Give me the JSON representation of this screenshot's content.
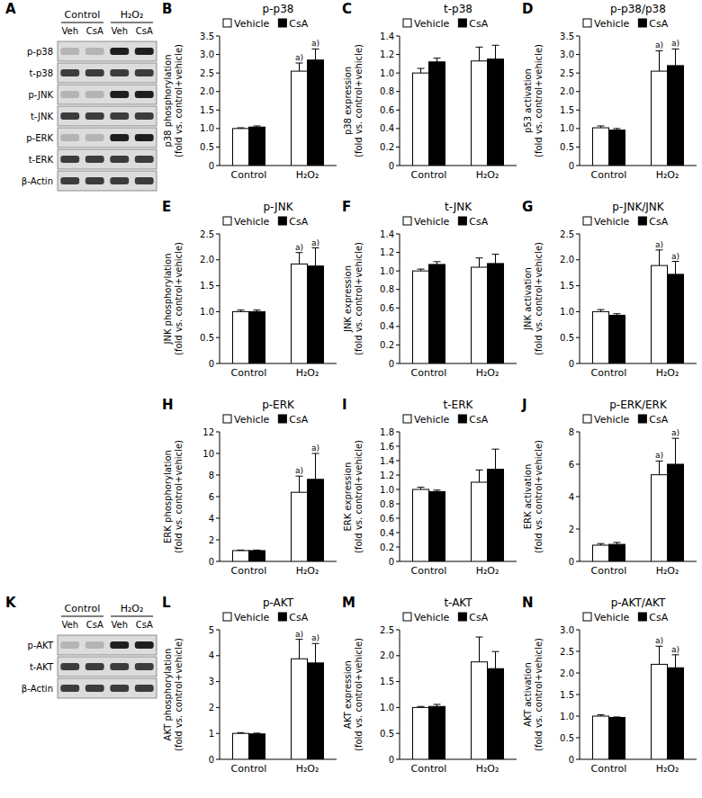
{
  "chart_data": [
    {
      "panel": "B",
      "type": "bar",
      "title": "p-p38",
      "ylabel": [
        "p38 phosphorylation",
        "(fold vs. control+vehicle)"
      ],
      "categories": [
        "Control",
        "H₂O₂"
      ],
      "legend": "upper left",
      "ylim": [
        0,
        3.5
      ],
      "yticks": [
        0,
        0.5,
        {
          "value": 1,
          "label": "1.0"
        },
        1.5,
        {
          "value": 2,
          "label": "2.0"
        },
        2.5,
        {
          "value": 3,
          "label": "3.0"
        },
        3.5
      ],
      "series": [
        {
          "name": "Vehicle",
          "color": "#ffffff",
          "values": [
            1.0,
            2.55
          ],
          "errors": [
            0.02,
            0.22
          ],
          "significance": [
            null,
            "a)"
          ]
        },
        {
          "name": "CsA",
          "color": "#000000",
          "values": [
            1.04,
            2.85
          ],
          "errors": [
            0.03,
            0.3
          ],
          "significance": [
            null,
            "a)"
          ]
        }
      ]
    },
    {
      "panel": "C",
      "type": "bar",
      "title": "t-p38",
      "ylabel": [
        "p38 expression",
        "(fold vs. control+vehicle)"
      ],
      "categories": [
        "Control",
        "H₂O₂"
      ],
      "legend": "upper left",
      "ylim": [
        0,
        1.4
      ],
      "yticks": [
        0,
        0.2,
        0.4,
        0.6,
        0.8,
        {
          "value": 1,
          "label": "1.0"
        },
        1.2,
        1.4
      ],
      "series": [
        {
          "name": "Vehicle",
          "color": "#ffffff",
          "values": [
            1.0,
            1.13
          ],
          "errors": [
            0.05,
            0.15
          ]
        },
        {
          "name": "CsA",
          "color": "#000000",
          "values": [
            1.12,
            1.15
          ],
          "errors": [
            0.04,
            0.15
          ]
        }
      ]
    },
    {
      "panel": "D",
      "type": "bar",
      "title": "p-p38/p38",
      "ylabel": [
        "p53 activation",
        "(fold vs. control+vehicle)"
      ],
      "categories": [
        "Control",
        "H₂O₂"
      ],
      "legend": "upper left",
      "ylim": [
        0,
        3.5
      ],
      "yticks": [
        0,
        0.5,
        {
          "value": 1,
          "label": "1.0"
        },
        1.5,
        {
          "value": 2,
          "label": "2.0"
        },
        2.5,
        {
          "value": 3,
          "label": "3.0"
        },
        3.5
      ],
      "series": [
        {
          "name": "Vehicle",
          "color": "#ffffff",
          "values": [
            1.02,
            2.55
          ],
          "errors": [
            0.05,
            0.55
          ],
          "significance": [
            null,
            "a)"
          ]
        },
        {
          "name": "CsA",
          "color": "#000000",
          "values": [
            0.96,
            2.7
          ],
          "errors": [
            0.04,
            0.45
          ],
          "significance": [
            null,
            "a)"
          ]
        }
      ]
    },
    {
      "panel": "E",
      "type": "bar",
      "title": "p-JNK",
      "ylabel": [
        "JNK phosphorylation",
        "(fold vs. control+vehicle)"
      ],
      "categories": [
        "Control",
        "H₂O₂"
      ],
      "legend": "upper left",
      "ylim": [
        0,
        2.5
      ],
      "yticks": [
        0,
        0.5,
        {
          "value": 1,
          "label": "1.0"
        },
        1.5,
        {
          "value": 2,
          "label": "2.0"
        },
        2.5
      ],
      "series": [
        {
          "name": "Vehicle",
          "color": "#ffffff",
          "values": [
            1.0,
            1.92
          ],
          "errors": [
            0.03,
            0.22
          ],
          "significance": [
            null,
            "a)"
          ]
        },
        {
          "name": "CsA",
          "color": "#000000",
          "values": [
            1.0,
            1.88
          ],
          "errors": [
            0.03,
            0.35
          ],
          "significance": [
            null,
            "a)"
          ]
        }
      ]
    },
    {
      "panel": "F",
      "type": "bar",
      "title": "t-JNK",
      "ylabel": [
        "JNK expression",
        "(fold vs. control+vehicle)"
      ],
      "categories": [
        "Control",
        "H₂O₂"
      ],
      "legend": "upper left",
      "ylim": [
        0,
        1.4
      ],
      "yticks": [
        0,
        0.2,
        0.4,
        0.6,
        0.8,
        {
          "value": 1,
          "label": "1.0"
        },
        1.2,
        1.4
      ],
      "series": [
        {
          "name": "Vehicle",
          "color": "#ffffff",
          "values": [
            1.0,
            1.04
          ],
          "errors": [
            0.02,
            0.1
          ]
        },
        {
          "name": "CsA",
          "color": "#000000",
          "values": [
            1.07,
            1.08
          ],
          "errors": [
            0.03,
            0.1
          ]
        }
      ]
    },
    {
      "panel": "G",
      "type": "bar",
      "title": "p-JNK/JNK",
      "ylabel": [
        "JNK activation",
        "(fold vs. control+vehicle)"
      ],
      "categories": [
        "Control",
        "H₂O₂"
      ],
      "legend": "upper left",
      "ylim": [
        0,
        2.5
      ],
      "yticks": [
        0,
        0.5,
        {
          "value": 1,
          "label": "1.0"
        },
        1.5,
        {
          "value": 2,
          "label": "2.0"
        },
        2.5
      ],
      "series": [
        {
          "name": "Vehicle",
          "color": "#ffffff",
          "values": [
            1.0,
            1.89
          ],
          "errors": [
            0.04,
            0.3
          ],
          "significance": [
            null,
            "a)"
          ]
        },
        {
          "name": "CsA",
          "color": "#000000",
          "values": [
            0.93,
            1.72
          ],
          "errors": [
            0.03,
            0.25
          ],
          "significance": [
            null,
            "a)"
          ]
        }
      ]
    },
    {
      "panel": "H",
      "type": "bar",
      "title": "p-ERK",
      "ylabel": [
        "ERK phosphorylation",
        "(fold vs. control+vehicle)"
      ],
      "categories": [
        "Control",
        "H₂O₂"
      ],
      "legend": "upper left",
      "ylim": [
        0,
        12
      ],
      "yticks": [
        0,
        2,
        4,
        6,
        8,
        10,
        12
      ],
      "series": [
        {
          "name": "Vehicle",
          "color": "#ffffff",
          "values": [
            1.0,
            6.4
          ],
          "errors": [
            0.05,
            1.5
          ],
          "significance": [
            null,
            "a)"
          ]
        },
        {
          "name": "CsA",
          "color": "#000000",
          "values": [
            1.0,
            7.6
          ],
          "errors": [
            0.05,
            2.4
          ],
          "significance": [
            null,
            "a)"
          ]
        }
      ]
    },
    {
      "panel": "I",
      "type": "bar",
      "title": "t-ERK",
      "ylabel": [
        "ERK expression",
        "(fold vs. control+vehicle)"
      ],
      "categories": [
        "Control",
        "H₂O₂"
      ],
      "legend": "upper left",
      "ylim": [
        0,
        1.8
      ],
      "yticks": [
        0,
        0.2,
        0.4,
        0.6,
        0.8,
        {
          "value": 1,
          "label": "1.0"
        },
        1.2,
        1.4,
        1.6,
        1.8
      ],
      "series": [
        {
          "name": "Vehicle",
          "color": "#ffffff",
          "values": [
            1.0,
            1.1
          ],
          "errors": [
            0.03,
            0.17
          ]
        },
        {
          "name": "CsA",
          "color": "#000000",
          "values": [
            0.97,
            1.28
          ],
          "errors": [
            0.02,
            0.28
          ]
        }
      ]
    },
    {
      "panel": "J",
      "type": "bar",
      "title": "p-ERK/ERK",
      "ylabel": [
        "ERK activation",
        "(fold vs. control+vehicle)"
      ],
      "categories": [
        "Control",
        "H₂O₂"
      ],
      "legend": "upper left",
      "ylim": [
        0,
        8
      ],
      "yticks": [
        0,
        2,
        4,
        6,
        8
      ],
      "series": [
        {
          "name": "Vehicle",
          "color": "#ffffff",
          "values": [
            1.0,
            5.35
          ],
          "errors": [
            0.1,
            0.85
          ],
          "significance": [
            null,
            "a)"
          ]
        },
        {
          "name": "CsA",
          "color": "#000000",
          "values": [
            1.05,
            6.0
          ],
          "errors": [
            0.12,
            1.6
          ],
          "significance": [
            null,
            "a)"
          ]
        }
      ]
    },
    {
      "panel": "L",
      "type": "bar",
      "title": "p-AKT",
      "ylabel": [
        "AKT phosphorylation",
        "(fold vs. control+vehicle)"
      ],
      "categories": [
        "Control",
        "H₂O₂"
      ],
      "legend": "upper left",
      "ylim": [
        0,
        5
      ],
      "yticks": [
        0,
        1,
        2,
        3,
        4,
        5
      ],
      "series": [
        {
          "name": "Vehicle",
          "color": "#ffffff",
          "values": [
            1.0,
            3.88
          ],
          "errors": [
            0.03,
            0.75
          ],
          "significance": [
            null,
            "a)"
          ]
        },
        {
          "name": "CsA",
          "color": "#000000",
          "values": [
            0.98,
            3.72
          ],
          "errors": [
            0.03,
            0.75
          ],
          "significance": [
            null,
            "a)"
          ]
        }
      ]
    },
    {
      "panel": "M",
      "type": "bar",
      "title": "t-AKT",
      "ylabel": [
        "AKT expression",
        "(fold vs. control+vehicle)"
      ],
      "categories": [
        "Control",
        "H₂O₂"
      ],
      "legend": "upper left",
      "ylim": [
        0,
        2.5
      ],
      "yticks": [
        0,
        0.5,
        {
          "value": 1,
          "label": "1.0"
        },
        1.5,
        {
          "value": 2,
          "label": "2.0"
        },
        2.5
      ],
      "series": [
        {
          "name": "Vehicle",
          "color": "#ffffff",
          "values": [
            1.0,
            1.88
          ],
          "errors": [
            0.02,
            0.48
          ]
        },
        {
          "name": "CsA",
          "color": "#000000",
          "values": [
            1.02,
            1.75
          ],
          "errors": [
            0.04,
            0.33
          ]
        }
      ]
    },
    {
      "panel": "N",
      "type": "bar",
      "title": "p-AKT/AKT",
      "ylabel": [
        "AKT activation",
        "(fold vs. control+vehicle)"
      ],
      "categories": [
        "Control",
        "H₂O₂"
      ],
      "legend": "upper left",
      "ylim": [
        0,
        3
      ],
      "yticks": [
        0,
        0.5,
        {
          "value": 1,
          "label": "1.0"
        },
        1.5,
        {
          "value": 2,
          "label": "2.0"
        },
        2.5,
        {
          "value": 3,
          "label": "3.0"
        }
      ],
      "series": [
        {
          "name": "Vehicle",
          "color": "#ffffff",
          "values": [
            1.0,
            2.2
          ],
          "errors": [
            0.03,
            0.42
          ],
          "significance": [
            null,
            "a)"
          ]
        },
        {
          "name": "CsA",
          "color": "#000000",
          "values": [
            0.97,
            2.12
          ],
          "errors": [
            0.01,
            0.3
          ],
          "significance": [
            null,
            "a)"
          ]
        }
      ]
    }
  ],
  "blots": [
    {
      "panel": "A",
      "groups": [
        "Control",
        "H₂O₂"
      ],
      "lanes": [
        "Veh",
        "CsA",
        "Veh",
        "CsA"
      ],
      "rows": [
        "p-p38",
        "t-p38",
        "p-JNK",
        "t-JNK",
        "p-ERK",
        "t-ERK",
        "β-Actin"
      ]
    },
    {
      "panel": "K",
      "groups": [
        "Control",
        "H₂O₂"
      ],
      "lanes": [
        "Veh",
        "CsA",
        "Veh",
        "CsA"
      ],
      "rows": [
        "p-AKT",
        "t-AKT",
        "β-Actin"
      ]
    }
  ]
}
